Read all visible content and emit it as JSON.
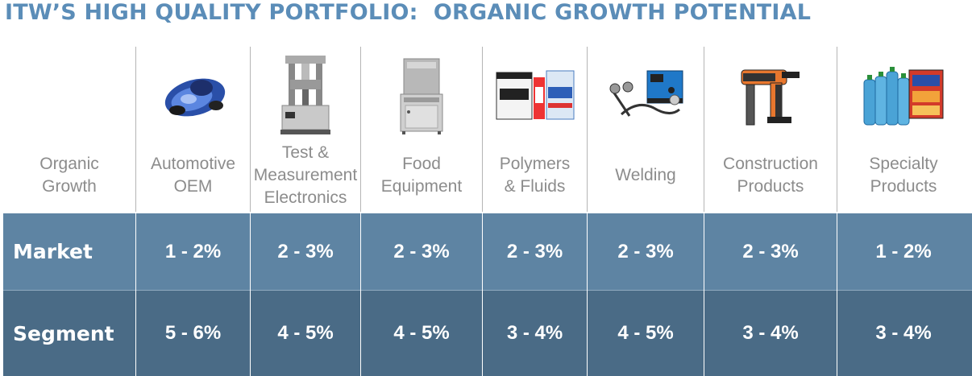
{
  "title": "ITW’S HIGH QUALITY PORTFOLIO:  ORGANIC GROWTH POTENTIAL",
  "header": {
    "row_label_line1": "Organic",
    "row_label_line2": "Growth"
  },
  "segments": [
    {
      "label1": "Automotive",
      "label2": "OEM",
      "label3": "",
      "icon": "auto-part-icon",
      "market": "1 - 2%",
      "segment": "5 - 6%"
    },
    {
      "label1": "Test &",
      "label2": "Measurement",
      "label3": "Electronics",
      "icon": "test-machine-icon",
      "market": "2 - 3%",
      "segment": "4 - 5%"
    },
    {
      "label1": "Food",
      "label2": "Equipment",
      "label3": "",
      "icon": "dishwasher-icon",
      "market": "2 - 3%",
      "segment": "4 - 5%"
    },
    {
      "label1": "Polymers",
      "label2": "& Fluids",
      "label3": "",
      "icon": "polymer-containers-icon",
      "market": "2 - 3%",
      "segment": "3 - 4%"
    },
    {
      "label1": "Welding",
      "label2": "",
      "label3": "",
      "icon": "welder-icon",
      "market": "2 - 3%",
      "segment": "4 - 5%"
    },
    {
      "label1": "Construction",
      "label2": "Products",
      "label3": "",
      "icon": "nail-gun-icon",
      "market": "2 - 3%",
      "segment": "3 - 4%"
    },
    {
      "label1": "Specialty",
      "label2": "Products",
      "label3": "",
      "icon": "water-bottles-icon",
      "market": "1 - 2%",
      "segment": "3 - 4%"
    }
  ],
  "rows": {
    "market_label": "Market",
    "segment_label": "Segment"
  },
  "colors": {
    "title": "#5b8db8",
    "market_row": "#5e84a3",
    "segment_row": "#4a6b86",
    "header_text": "#8c8c8c"
  }
}
